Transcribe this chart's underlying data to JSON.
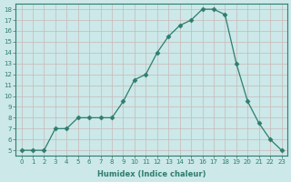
{
  "x": [
    0,
    1,
    2,
    3,
    4,
    5,
    6,
    7,
    8,
    9,
    10,
    11,
    12,
    13,
    14,
    15,
    16,
    17,
    18,
    19,
    20,
    21,
    22,
    23
  ],
  "y": [
    5,
    5,
    5,
    7,
    7,
    8,
    8,
    8,
    8,
    9.5,
    11.5,
    12,
    14,
    15.5,
    16.5,
    17,
    18,
    18,
    17.5,
    13,
    9.5,
    7.5,
    6,
    5
  ],
  "line_color": "#2e7d6e",
  "marker": "D",
  "marker_size": 2.5,
  "bg_color": "#cce8e8",
  "grid_color_major": "#c0d8d8",
  "grid_color_minor": "#d8ecec",
  "xlabel": "Humidex (Indice chaleur)",
  "xlim": [
    -0.5,
    23.5
  ],
  "ylim": [
    4.5,
    18.5
  ],
  "yticks": [
    5,
    6,
    7,
    8,
    9,
    10,
    11,
    12,
    13,
    14,
    15,
    16,
    17,
    18
  ],
  "xticks": [
    0,
    1,
    2,
    3,
    4,
    5,
    6,
    7,
    8,
    9,
    10,
    11,
    12,
    13,
    14,
    15,
    16,
    17,
    18,
    19,
    20,
    21,
    22,
    23
  ]
}
